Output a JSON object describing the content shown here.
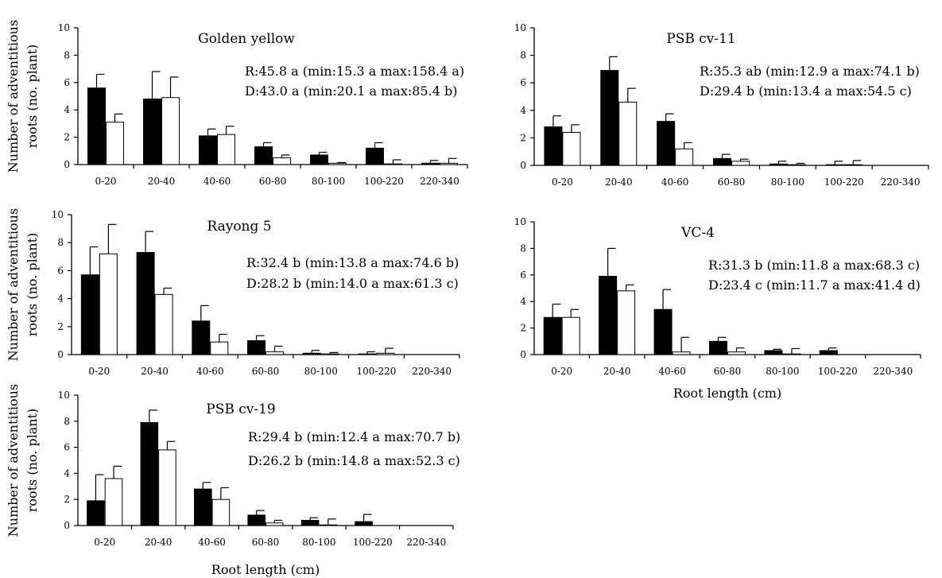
{
  "chart_data": [
    {
      "type": "bar",
      "title": "Golden yellow",
      "categories": [
        "0-20",
        "20-40",
        "40-60",
        "60-80",
        "80-100",
        "100-220",
        "220-340"
      ],
      "series": [
        {
          "color": "#000000",
          "values": [
            5.6,
            4.8,
            2.1,
            1.3,
            0.7,
            1.2,
            0.1
          ],
          "errors": [
            1.0,
            2.0,
            0.5,
            0.3,
            0.2,
            0.4,
            0.2
          ]
        },
        {
          "color": "#ffffff",
          "values": [
            3.1,
            4.9,
            2.2,
            0.5,
            0.1,
            0.05,
            0.1
          ],
          "errors": [
            0.6,
            1.5,
            0.6,
            0.2,
            0.05,
            0.3,
            0.35
          ]
        }
      ],
      "annotations": [
        "R:45.8 a (min:15.3 a  max:158.4 a)",
        "D:43.0 a (min:20.1 a   max:85.4 b)"
      ],
      "ylabel": [
        "Number of adventitious",
        "roots (no. plant)"
      ],
      "xlabel": "",
      "ylim": [
        0,
        10
      ],
      "yticks": [
        0,
        2,
        4,
        6,
        8,
        10
      ]
    },
    {
      "type": "bar",
      "title": "PSB cv-11",
      "categories": [
        "0-20",
        "20-40",
        "40-60",
        "60-80",
        "80-100",
        "100-220",
        "220-340"
      ],
      "series": [
        {
          "color": "#000000",
          "values": [
            2.8,
            6.9,
            3.2,
            0.5,
            0.1,
            0.05,
            0
          ],
          "errors": [
            0.8,
            1.0,
            0.55,
            0.3,
            0.2,
            0.25,
            0
          ]
        },
        {
          "color": "#ffffff",
          "values": [
            2.4,
            4.6,
            1.2,
            0.3,
            0.05,
            0.05,
            0
          ],
          "errors": [
            0.55,
            1.0,
            0.45,
            0.15,
            0.1,
            0.3,
            0
          ]
        }
      ],
      "annotations": [
        "R:35.3 ab (min:12.9 a  max:74.1 b)",
        "D:29.4 b   (min:13.4 a  max:54.5 c)"
      ],
      "ylabel": [],
      "xlabel": "",
      "ylim": [
        0,
        10
      ],
      "yticks": [
        0,
        2,
        4,
        6,
        8,
        10
      ]
    },
    {
      "type": "bar",
      "title": "Rayong 5",
      "categories": [
        "0-20",
        "20-40",
        "40-60",
        "60-80",
        "80-100",
        "100-220",
        "220-340"
      ],
      "series": [
        {
          "color": "#000000",
          "values": [
            5.7,
            7.3,
            2.4,
            1.0,
            0.1,
            0.05,
            0
          ],
          "errors": [
            2.0,
            1.5,
            1.1,
            0.35,
            0.2,
            0.15,
            0
          ]
        },
        {
          "color": "#ffffff",
          "values": [
            7.2,
            4.3,
            0.9,
            0.2,
            0.05,
            0.1,
            0
          ],
          "errors": [
            2.1,
            0.45,
            0.55,
            0.4,
            0.1,
            0.35,
            0
          ]
        }
      ],
      "annotations": [
        "R:32.4 b (min:13.8 a   max:74.6 b)",
        "D:28.2 b (min:14.0 a   max:61.3 c)"
      ],
      "ylabel": [
        "Number of adventitious",
        "roots (no. plant)"
      ],
      "xlabel": "",
      "ylim": [
        0,
        10
      ],
      "yticks": [
        0,
        2,
        4,
        6,
        8,
        10
      ]
    },
    {
      "type": "bar",
      "title": "VC-4",
      "categories": [
        "0-20",
        "20-40",
        "40-60",
        "60-80",
        "80-100",
        "100-220",
        "220-340"
      ],
      "series": [
        {
          "color": "#000000",
          "values": [
            2.8,
            5.9,
            3.4,
            1.0,
            0.3,
            0.3,
            0
          ],
          "errors": [
            1.0,
            2.1,
            1.5,
            0.3,
            0.1,
            0.2,
            0
          ]
        },
        {
          "color": "#ffffff",
          "values": [
            2.8,
            4.8,
            0.2,
            0.2,
            0.05,
            0,
            0
          ],
          "errors": [
            0.6,
            0.45,
            1.1,
            0.3,
            0.4,
            0,
            0
          ]
        }
      ],
      "annotations": [
        "R:31.3 b (min:11.8 a  max:68.3 c)",
        "D:23.4 c (min:11.7 a  max:41.4 d)"
      ],
      "ylabel": [],
      "xlabel": "Root length (cm)",
      "ylim": [
        0,
        10
      ],
      "yticks": [
        0,
        2,
        4,
        6,
        8,
        10
      ]
    },
    {
      "type": "bar",
      "title": "PSB cv-19",
      "categories": [
        "0-20",
        "20-40",
        "40-60",
        "60-80",
        "80-100",
        "100-220",
        "220-340"
      ],
      "series": [
        {
          "color": "#000000",
          "values": [
            1.9,
            7.9,
            2.8,
            0.8,
            0.4,
            0.3,
            0
          ],
          "errors": [
            2.0,
            0.95,
            0.5,
            0.35,
            0.2,
            0.55,
            0
          ]
        },
        {
          "color": "#ffffff",
          "values": [
            3.6,
            5.8,
            2.0,
            0.2,
            0.05,
            0,
            0
          ],
          "errors": [
            0.95,
            0.65,
            0.9,
            0.2,
            0.45,
            0,
            0
          ]
        }
      ],
      "annotations": [
        "R:29.4 b  (min:12.4 a   max:70.7 b)",
        "D:26.2 b (min:14.8 a   max:52.3 c)"
      ],
      "ylabel": [
        "Number of adventitious",
        "roots (no. plant)"
      ],
      "xlabel": "Root length (cm)",
      "ylim": [
        0,
        10
      ],
      "yticks": [
        0,
        2,
        4,
        6,
        8,
        10
      ]
    }
  ]
}
